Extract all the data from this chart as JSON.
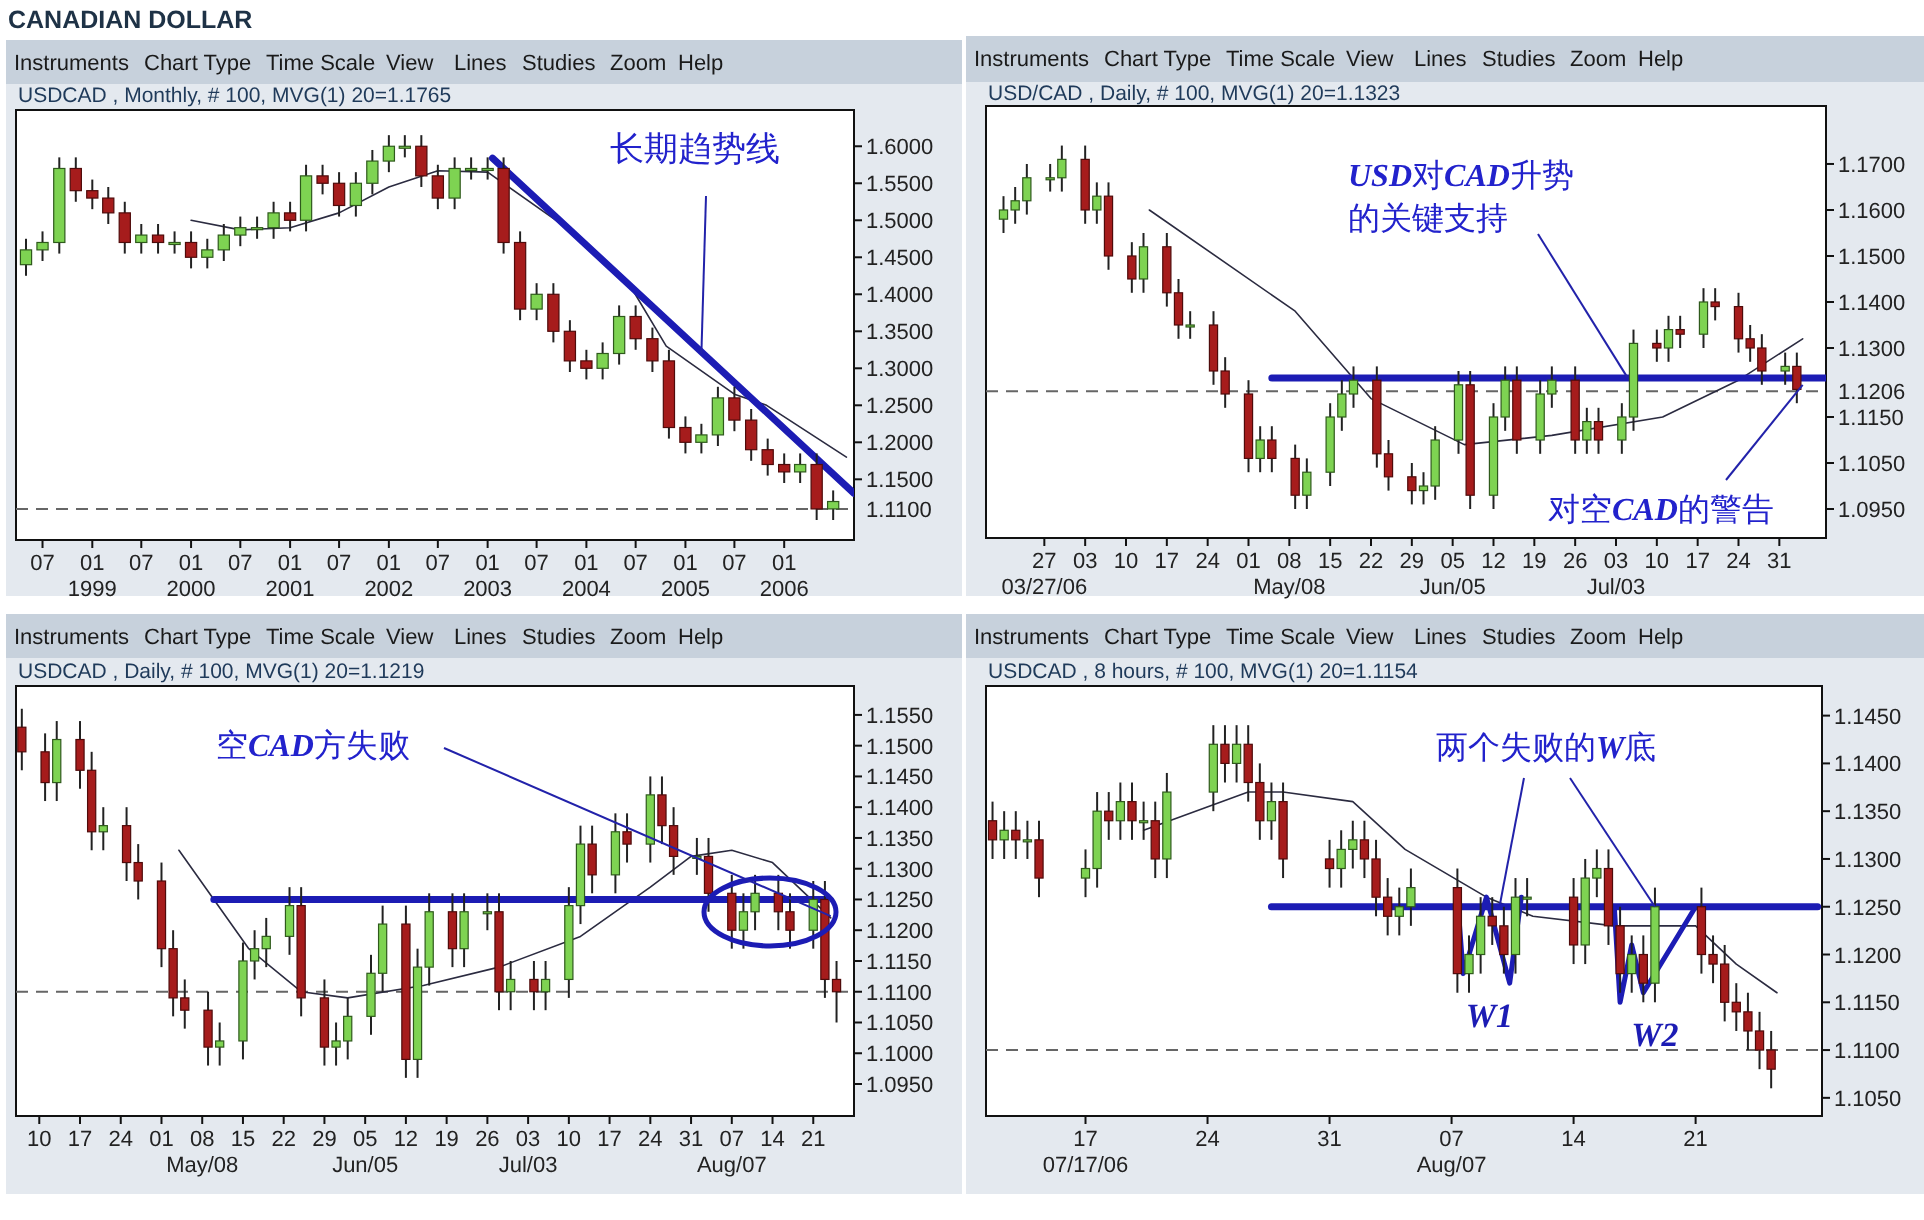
{
  "chart_data": [
    {
      "type": "candlestick",
      "title": "CANADIAN DOLLAR",
      "subtitle": "USDCAD , Monthly, # 100, MVG(1) 20=1.1765",
      "x": [
        "1998-05",
        "1998-07",
        "1998-09",
        "1998-11",
        "1999-01",
        "1999-03",
        "1999-05",
        "1999-07",
        "1999-09",
        "1999-11",
        "2000-01",
        "2000-03",
        "2000-05",
        "2000-07",
        "2000-09",
        "2000-11",
        "2001-01",
        "2001-03",
        "2001-05",
        "2001-07",
        "2001-09",
        "2001-11",
        "2002-01",
        "2002-03",
        "2002-05",
        "2002-07",
        "2002-09",
        "2002-11",
        "2003-01",
        "2003-03",
        "2003-05",
        "2003-07",
        "2003-09",
        "2003-11",
        "2004-01",
        "2004-03",
        "2004-05",
        "2004-07",
        "2004-09",
        "2004-11",
        "2005-01",
        "2005-03",
        "2005-05",
        "2005-07",
        "2005-09",
        "2005-11",
        "2006-01",
        "2006-03",
        "2006-05",
        "2006-07"
      ],
      "ohlc": [
        [
          1.44,
          1.475,
          1.425,
          1.46
        ],
        [
          1.46,
          1.485,
          1.445,
          1.47
        ],
        [
          1.47,
          1.585,
          1.455,
          1.57
        ],
        [
          1.57,
          1.585,
          1.525,
          1.54
        ],
        [
          1.54,
          1.555,
          1.515,
          1.53
        ],
        [
          1.53,
          1.545,
          1.495,
          1.51
        ],
        [
          1.51,
          1.525,
          1.455,
          1.47
        ],
        [
          1.47,
          1.495,
          1.455,
          1.48
        ],
        [
          1.48,
          1.495,
          1.455,
          1.47
        ],
        [
          1.47,
          1.485,
          1.455,
          1.47
        ],
        [
          1.47,
          1.485,
          1.435,
          1.45
        ],
        [
          1.45,
          1.475,
          1.435,
          1.46
        ],
        [
          1.46,
          1.495,
          1.445,
          1.48
        ],
        [
          1.48,
          1.505,
          1.465,
          1.49
        ],
        [
          1.49,
          1.505,
          1.475,
          1.49
        ],
        [
          1.49,
          1.525,
          1.475,
          1.51
        ],
        [
          1.51,
          1.525,
          1.485,
          1.5
        ],
        [
          1.5,
          1.575,
          1.485,
          1.56
        ],
        [
          1.56,
          1.575,
          1.535,
          1.55
        ],
        [
          1.55,
          1.565,
          1.505,
          1.52
        ],
        [
          1.52,
          1.565,
          1.505,
          1.55
        ],
        [
          1.55,
          1.595,
          1.535,
          1.58
        ],
        [
          1.58,
          1.615,
          1.565,
          1.6
        ],
        [
          1.6,
          1.615,
          1.585,
          1.6
        ],
        [
          1.6,
          1.615,
          1.545,
          1.56
        ],
        [
          1.56,
          1.575,
          1.515,
          1.53
        ],
        [
          1.53,
          1.585,
          1.515,
          1.57
        ],
        [
          1.57,
          1.585,
          1.555,
          1.57
        ],
        [
          1.57,
          1.585,
          1.555,
          1.57
        ],
        [
          1.57,
          1.585,
          1.455,
          1.47
        ],
        [
          1.47,
          1.485,
          1.365,
          1.38
        ],
        [
          1.38,
          1.415,
          1.365,
          1.4
        ],
        [
          1.4,
          1.415,
          1.335,
          1.35
        ],
        [
          1.35,
          1.365,
          1.295,
          1.31
        ],
        [
          1.31,
          1.325,
          1.285,
          1.3
        ],
        [
          1.3,
          1.335,
          1.285,
          1.32
        ],
        [
          1.32,
          1.385,
          1.305,
          1.37
        ],
        [
          1.37,
          1.385,
          1.325,
          1.34
        ],
        [
          1.34,
          1.355,
          1.295,
          1.31
        ],
        [
          1.31,
          1.325,
          1.205,
          1.22
        ],
        [
          1.22,
          1.235,
          1.185,
          1.2
        ],
        [
          1.2,
          1.225,
          1.185,
          1.21
        ],
        [
          1.21,
          1.275,
          1.195,
          1.26
        ],
        [
          1.26,
          1.275,
          1.215,
          1.23
        ],
        [
          1.23,
          1.245,
          1.175,
          1.19
        ],
        [
          1.19,
          1.205,
          1.155,
          1.17
        ],
        [
          1.17,
          1.185,
          1.145,
          1.16
        ],
        [
          1.16,
          1.185,
          1.145,
          1.17
        ],
        [
          1.17,
          1.185,
          1.095,
          1.11
        ],
        [
          1.11,
          1.135,
          1.095,
          1.12
        ]
      ],
      "series": [
        {
          "type": "line",
          "color": "#2b2b40",
          "x": [
            "2000-01",
            "2000-07",
            "2001-01",
            "2001-07",
            "2002-01",
            "2002-07",
            "2003-01",
            "2003-10-19",
            "2004-05-28",
            "2004-10-22",
            "2005-07",
            "2005-10-28",
            "2006-08-19"
          ],
          "values": [
            1.5,
            1.487,
            1.49,
            1.51,
            1.545,
            1.567,
            1.565,
            1.49,
            1.42,
            1.33,
            1.265,
            1.25,
            1.18
          ]
        },
        {
          "type": "line",
          "color": "#1c1cb4",
          "x": [
            "2003-01-19",
            "2006-09-16"
          ],
          "values": [
            1.584,
            1.131
          ]
        }
      ],
      "xlim": [
        "1998-03-25",
        "2006-09-16"
      ],
      "ylim": [
        1.068,
        1.649
      ],
      "xticks": [
        {
          "value": "1998-07",
          "label": "07"
        },
        {
          "value": "1999-01",
          "label": "01\n1999"
        },
        {
          "value": "1999-07",
          "label": "07"
        },
        {
          "value": "2000-01",
          "label": "01\n2000"
        },
        {
          "value": "2000-07",
          "label": "07"
        },
        {
          "value": "2001-01",
          "label": "01\n2001"
        },
        {
          "value": "2001-07",
          "label": "07"
        },
        {
          "value": "2002-01",
          "label": "01\n2002"
        },
        {
          "value": "2002-07",
          "label": "07"
        },
        {
          "value": "2003-01",
          "label": "01\n2003"
        },
        {
          "value": "2003-07",
          "label": "07"
        },
        {
          "value": "2004-01",
          "label": "01\n2004"
        },
        {
          "value": "2004-07",
          "label": "07"
        },
        {
          "value": "2005-01",
          "label": "01\n2005"
        },
        {
          "value": "2005-07",
          "label": "07"
        },
        {
          "value": "2006-01",
          "label": "01\n2006"
        }
      ],
      "yticks": [
        {
          "value": 1.6,
          "label": "1.6000"
        },
        {
          "value": 1.55,
          "label": "1.5500"
        },
        {
          "value": 1.5,
          "label": "1.5000"
        },
        {
          "value": 1.45,
          "label": "1.4500"
        },
        {
          "value": 1.4,
          "label": "1.4000"
        },
        {
          "value": 1.35,
          "label": "1.3500"
        },
        {
          "value": 1.3,
          "label": "1.3000"
        },
        {
          "value": 1.25,
          "label": "1.2500"
        },
        {
          "value": 1.2,
          "label": "1.2000"
        },
        {
          "value": 1.15,
          "label": "1.1500"
        }
      ],
      "ref_lines": [
        {
          "axis": "y",
          "value": 1.11,
          "label": "1.1100",
          "line_style": "dashed",
          "color": "#666666"
        }
      ],
      "annotations": [
        "Instruments",
        "Chart Type",
        "Time Scale",
        "View",
        "Lines",
        "Studies",
        "Zoom",
        "Help",
        {
          "text": "长期趋势线",
          "x": "2005-03",
          "y": 1.32
        }
      ]
    },
    {
      "type": "candlestick",
      "subtitle": "USD/CAD , Daily, # 100, MVG(1) 20=1.1323",
      "x": [
        "2006-03-20",
        "2006-03-22",
        "2006-03-24",
        "2006-03-28",
        "2006-03-30",
        "2006-04-03",
        "2006-04-05",
        "2006-04-07",
        "2006-04-11",
        "2006-04-13",
        "2006-04-17",
        "2006-04-19",
        "2006-04-21",
        "2006-04-25",
        "2006-04-27",
        "2006-05-01",
        "2006-05-03",
        "2006-05-05",
        "2006-05-09",
        "2006-05-11",
        "2006-05-15",
        "2006-05-17",
        "2006-05-19",
        "2006-05-23",
        "2006-05-25",
        "2006-05-29",
        "2006-05-31",
        "2006-06-02",
        "2006-06-06",
        "2006-06-08",
        "2006-06-12",
        "2006-06-14",
        "2006-06-16",
        "2006-06-20",
        "2006-06-22",
        "2006-06-26",
        "2006-06-28",
        "2006-06-30",
        "2006-07-04",
        "2006-07-06",
        "2006-07-10",
        "2006-07-12",
        "2006-07-14",
        "2006-07-18",
        "2006-07-20",
        "2006-07-24",
        "2006-07-26",
        "2006-07-28",
        "2006-08-01",
        "2006-08-03"
      ],
      "ohlc": [
        [
          1.158,
          1.163,
          1.155,
          1.16
        ],
        [
          1.16,
          1.165,
          1.157,
          1.162
        ],
        [
          1.162,
          1.17,
          1.159,
          1.167
        ],
        [
          1.167,
          1.17,
          1.164,
          1.167
        ],
        [
          1.167,
          1.174,
          1.164,
          1.171
        ],
        [
          1.171,
          1.174,
          1.157,
          1.16
        ],
        [
          1.16,
          1.166,
          1.157,
          1.163
        ],
        [
          1.163,
          1.166,
          1.147,
          1.15
        ],
        [
          1.15,
          1.153,
          1.142,
          1.145
        ],
        [
          1.145,
          1.155,
          1.142,
          1.152
        ],
        [
          1.152,
          1.155,
          1.139,
          1.142
        ],
        [
          1.142,
          1.145,
          1.132,
          1.135
        ],
        [
          1.135,
          1.138,
          1.132,
          1.135
        ],
        [
          1.135,
          1.138,
          1.122,
          1.125
        ],
        [
          1.125,
          1.128,
          1.117,
          1.12
        ],
        [
          1.12,
          1.123,
          1.103,
          1.106
        ],
        [
          1.106,
          1.113,
          1.103,
          1.11
        ],
        [
          1.11,
          1.113,
          1.103,
          1.106
        ],
        [
          1.106,
          1.109,
          1.095,
          1.098
        ],
        [
          1.098,
          1.106,
          1.095,
          1.103
        ],
        [
          1.103,
          1.118,
          1.1,
          1.115
        ],
        [
          1.115,
          1.123,
          1.112,
          1.12
        ],
        [
          1.12,
          1.126,
          1.117,
          1.123
        ],
        [
          1.123,
          1.126,
          1.104,
          1.107
        ],
        [
          1.107,
          1.11,
          1.099,
          1.102
        ],
        [
          1.102,
          1.105,
          1.096,
          1.099
        ],
        [
          1.099,
          1.103,
          1.096,
          1.1
        ],
        [
          1.1,
          1.113,
          1.097,
          1.11
        ],
        [
          1.11,
          1.125,
          1.107,
          1.122
        ],
        [
          1.122,
          1.125,
          1.095,
          1.098
        ],
        [
          1.098,
          1.118,
          1.095,
          1.115
        ],
        [
          1.115,
          1.126,
          1.112,
          1.123
        ],
        [
          1.123,
          1.126,
          1.107,
          1.11
        ],
        [
          1.11,
          1.123,
          1.107,
          1.12
        ],
        [
          1.12,
          1.126,
          1.117,
          1.123
        ],
        [
          1.123,
          1.126,
          1.107,
          1.11
        ],
        [
          1.11,
          1.117,
          1.107,
          1.114
        ],
        [
          1.114,
          1.117,
          1.107,
          1.11
        ],
        [
          1.11,
          1.118,
          1.107,
          1.115
        ],
        [
          1.115,
          1.134,
          1.112,
          1.131
        ],
        [
          1.131,
          1.134,
          1.127,
          1.13
        ],
        [
          1.13,
          1.137,
          1.127,
          1.134
        ],
        [
          1.134,
          1.137,
          1.13,
          1.133
        ],
        [
          1.133,
          1.143,
          1.13,
          1.14
        ],
        [
          1.14,
          1.143,
          1.136,
          1.139
        ],
        [
          1.139,
          1.142,
          1.129,
          1.132
        ],
        [
          1.132,
          1.135,
          1.127,
          1.13
        ],
        [
          1.13,
          1.133,
          1.122,
          1.125
        ],
        [
          1.125,
          1.129,
          1.122,
          1.126
        ],
        [
          1.126,
          1.129,
          1.118,
          1.121
        ]
      ],
      "series": [
        {
          "type": "line",
          "color": "#2b2b40",
          "x": [
            "2006-04-14",
            "2006-05-09",
            "2006-05-22",
            "2006-06-07",
            "2006-06-22",
            "2006-07-11",
            "2006-07-24",
            "2006-08-04"
          ],
          "values": [
            1.16,
            1.138,
            1.119,
            1.109,
            1.111,
            1.115,
            1.123,
            1.132
          ]
        },
        {
          "type": "line",
          "color": "#1c1cb4",
          "x": [
            "2006-05-05",
            "2006-08-08"
          ],
          "values": [
            1.1235,
            1.1235
          ]
        }
      ],
      "xlim": [
        "2006-03-17",
        "2006-08-08"
      ],
      "ylim": [
        1.0887,
        1.1826
      ],
      "xticks": [
        {
          "value": "2006-03-27",
          "label": "27\n03/27/06"
        },
        {
          "value": "2006-04-03",
          "label": "03"
        },
        {
          "value": "2006-04-10",
          "label": "10"
        },
        {
          "value": "2006-04-17",
          "label": "17"
        },
        {
          "value": "2006-04-24",
          "label": "24"
        },
        {
          "value": "2006-05-01",
          "label": "01"
        },
        {
          "value": "2006-05-08",
          "label": "08\nMay/08"
        },
        {
          "value": "2006-05-15",
          "label": "15"
        },
        {
          "value": "2006-05-22",
          "label": "22"
        },
        {
          "value": "2006-05-29",
          "label": "29"
        },
        {
          "value": "2006-06-05",
          "label": "05\nJun/05"
        },
        {
          "value": "2006-06-12",
          "label": "12"
        },
        {
          "value": "2006-06-19",
          "label": "19"
        },
        {
          "value": "2006-06-26",
          "label": "26"
        },
        {
          "value": "2006-07-03",
          "label": "03\nJul/03"
        },
        {
          "value": "2006-07-10",
          "label": "10"
        },
        {
          "value": "2006-07-17",
          "label": "17"
        },
        {
          "value": "2006-07-24",
          "label": "24"
        },
        {
          "value": "2006-07-31",
          "label": "31"
        }
      ],
      "yticks": [
        {
          "value": 1.17,
          "label": "1.1700"
        },
        {
          "value": 1.16,
          "label": "1.1600"
        },
        {
          "value": 1.15,
          "label": "1.1500"
        },
        {
          "value": 1.14,
          "label": "1.1400"
        },
        {
          "value": 1.13,
          "label": "1.1300"
        },
        {
          "value": 1.115,
          "label": "1.1150"
        },
        {
          "value": 1.105,
          "label": "1.1050"
        },
        {
          "value": 1.095,
          "label": "1.0950"
        }
      ],
      "ref_lines": [
        {
          "axis": "y",
          "value": 1.1206,
          "label": "1.1206",
          "line_style": "dashed",
          "color": "#666666"
        }
      ],
      "annotations": [
        "Instruments",
        "Chart Type",
        "Time Scale",
        "View",
        "Lines",
        "Studies",
        "Zoom",
        "Help",
        {
          "text": "**USD**对**CAD**升势的关键支持",
          "x": "2006-07-05",
          "y": 1.1235
        },
        {
          "text": "对空**CAD**的警告",
          "x": "2006-08-04",
          "y": 1.122
        }
      ]
    },
    {
      "type": "candlestick",
      "subtitle": "USDCAD , Daily, # 100, MVG(1) 20=1.1219",
      "x": [
        "2006-04-07",
        "2006-04-11",
        "2006-04-13",
        "2006-04-17",
        "2006-04-19",
        "2006-04-21",
        "2006-04-25",
        "2006-04-27",
        "2006-05-01",
        "2006-05-03",
        "2006-05-05",
        "2006-05-09",
        "2006-05-11",
        "2006-05-15",
        "2006-05-17",
        "2006-05-19",
        "2006-05-23",
        "2006-05-25",
        "2006-05-29",
        "2006-05-31",
        "2006-06-02",
        "2006-06-06",
        "2006-06-08",
        "2006-06-12",
        "2006-06-14",
        "2006-06-16",
        "2006-06-20",
        "2006-06-22",
        "2006-06-26",
        "2006-06-28",
        "2006-06-30",
        "2006-07-04",
        "2006-07-06",
        "2006-07-10",
        "2006-07-12",
        "2006-07-14",
        "2006-07-18",
        "2006-07-20",
        "2006-07-24",
        "2006-07-26",
        "2006-07-28",
        "2006-08-01",
        "2006-08-03",
        "2006-08-07",
        "2006-08-09",
        "2006-08-11",
        "2006-08-15",
        "2006-08-17",
        "2006-08-21",
        "2006-08-23",
        "2006-08-25"
      ],
      "ohlc": [
        [
          1.153,
          1.156,
          1.146,
          1.149
        ],
        [
          1.149,
          1.152,
          1.141,
          1.144
        ],
        [
          1.144,
          1.154,
          1.141,
          1.151
        ],
        [
          1.151,
          1.154,
          1.143,
          1.146
        ],
        [
          1.146,
          1.149,
          1.133,
          1.136
        ],
        [
          1.136,
          1.14,
          1.133,
          1.137
        ],
        [
          1.137,
          1.14,
          1.128,
          1.131
        ],
        [
          1.131,
          1.134,
          1.125,
          1.128
        ],
        [
          1.128,
          1.131,
          1.114,
          1.117
        ],
        [
          1.117,
          1.12,
          1.106,
          1.109
        ],
        [
          1.109,
          1.112,
          1.104,
          1.107
        ],
        [
          1.107,
          1.11,
          1.098,
          1.101
        ],
        [
          1.101,
          1.105,
          1.098,
          1.102
        ],
        [
          1.102,
          1.118,
          1.099,
          1.115
        ],
        [
          1.115,
          1.12,
          1.112,
          1.117
        ],
        [
          1.117,
          1.122,
          1.114,
          1.119
        ],
        [
          1.119,
          1.127,
          1.116,
          1.124
        ],
        [
          1.124,
          1.127,
          1.106,
          1.109
        ],
        [
          1.109,
          1.112,
          1.098,
          1.101
        ],
        [
          1.101,
          1.105,
          1.098,
          1.102
        ],
        [
          1.102,
          1.109,
          1.099,
          1.106
        ],
        [
          1.106,
          1.116,
          1.103,
          1.113
        ],
        [
          1.113,
          1.124,
          1.11,
          1.121
        ],
        [
          1.121,
          1.124,
          1.096,
          1.099
        ],
        [
          1.099,
          1.117,
          1.096,
          1.114
        ],
        [
          1.114,
          1.126,
          1.111,
          1.123
        ],
        [
          1.123,
          1.126,
          1.114,
          1.117
        ],
        [
          1.117,
          1.126,
          1.114,
          1.123
        ],
        [
          1.123,
          1.126,
          1.12,
          1.123
        ],
        [
          1.123,
          1.126,
          1.107,
          1.11
        ],
        [
          1.11,
          1.115,
          1.107,
          1.112
        ],
        [
          1.112,
          1.115,
          1.107,
          1.11
        ],
        [
          1.11,
          1.115,
          1.107,
          1.112
        ],
        [
          1.112,
          1.127,
          1.109,
          1.124
        ],
        [
          1.124,
          1.137,
          1.121,
          1.134
        ],
        [
          1.134,
          1.137,
          1.126,
          1.129
        ],
        [
          1.129,
          1.139,
          1.126,
          1.136
        ],
        [
          1.136,
          1.139,
          1.131,
          1.134
        ],
        [
          1.134,
          1.145,
          1.131,
          1.142
        ],
        [
          1.142,
          1.145,
          1.134,
          1.137
        ],
        [
          1.137,
          1.14,
          1.129,
          1.132
        ],
        [
          1.132,
          1.135,
          1.129,
          1.132
        ],
        [
          1.132,
          1.135,
          1.123,
          1.126
        ],
        [
          1.126,
          1.129,
          1.117,
          1.12
        ],
        [
          1.12,
          1.126,
          1.117,
          1.123
        ],
        [
          1.123,
          1.129,
          1.12,
          1.126
        ],
        [
          1.126,
          1.129,
          1.12,
          1.123
        ],
        [
          1.123,
          1.126,
          1.117,
          1.12
        ],
        [
          1.12,
          1.128,
          1.117,
          1.125
        ],
        [
          1.125,
          1.128,
          1.109,
          1.112
        ],
        [
          1.112,
          1.115,
          1.105,
          1.11
        ]
      ],
      "series": [
        {
          "type": "line",
          "color": "#2b2b40",
          "x": [
            "2006-05-04",
            "2006-05-16",
            "2006-05-25",
            "2006-06-02",
            "2006-06-15",
            "2006-06-28",
            "2006-07-12",
            "2006-07-24",
            "2006-07-31",
            "2006-08-07",
            "2006-08-14",
            "2006-08-24"
          ],
          "values": [
            1.133,
            1.117,
            1.11,
            1.109,
            1.111,
            1.114,
            1.119,
            1.127,
            1.132,
            1.133,
            1.131,
            1.122
          ]
        },
        {
          "type": "line",
          "color": "#1c1cb4",
          "x": [
            "2006-05-10",
            "2006-08-23"
          ],
          "values": [
            1.125,
            1.125
          ]
        }
      ],
      "xlim": [
        "2006-04-06",
        "2006-08-28"
      ],
      "ylim": [
        1.0898,
        1.1597
      ],
      "xticks": [
        {
          "value": "2006-04-10",
          "label": "10"
        },
        {
          "value": "2006-04-17",
          "label": "17"
        },
        {
          "value": "2006-04-24",
          "label": "24"
        },
        {
          "value": "2006-05-01",
          "label": "01"
        },
        {
          "value": "2006-05-08",
          "label": "08\nMay/08"
        },
        {
          "value": "2006-05-15",
          "label": "15"
        },
        {
          "value": "2006-05-22",
          "label": "22"
        },
        {
          "value": "2006-05-29",
          "label": "29"
        },
        {
          "value": "2006-06-05",
          "label": "05\nJun/05"
        },
        {
          "value": "2006-06-12",
          "label": "12"
        },
        {
          "value": "2006-06-19",
          "label": "19"
        },
        {
          "value": "2006-06-26",
          "label": "26"
        },
        {
          "value": "2006-07-03",
          "label": "03\nJul/03"
        },
        {
          "value": "2006-07-10",
          "label": "10"
        },
        {
          "value": "2006-07-17",
          "label": "17"
        },
        {
          "value": "2006-07-24",
          "label": "24"
        },
        {
          "value": "2006-07-31",
          "label": "31"
        },
        {
          "value": "2006-08-07",
          "label": "07\nAug/07"
        },
        {
          "value": "2006-08-14",
          "label": "14"
        },
        {
          "value": "2006-08-21",
          "label": "21"
        }
      ],
      "yticks": [
        {
          "value": 1.155,
          "label": "1.1550"
        },
        {
          "value": 1.15,
          "label": "1.1500"
        },
        {
          "value": 1.145,
          "label": "1.1450"
        },
        {
          "value": 1.14,
          "label": "1.1400"
        },
        {
          "value": 1.135,
          "label": "1.1350"
        },
        {
          "value": 1.13,
          "label": "1.1300"
        },
        {
          "value": 1.125,
          "label": "1.1250"
        },
        {
          "value": 1.12,
          "label": "1.1200"
        },
        {
          "value": 1.115,
          "label": "1.1150"
        },
        {
          "value": 1.11,
          "label": "1.1100"
        },
        {
          "value": 1.105,
          "label": "1.1050"
        },
        {
          "value": 1.1,
          "label": "1.1000"
        },
        {
          "value": 1.095,
          "label": "1.0950"
        }
      ],
      "ref_lines": [
        {
          "axis": "y",
          "value": 1.11,
          "line_style": "dashed",
          "color": "#666666"
        }
      ],
      "annotations": [
        "Instruments",
        "Chart Type",
        "Time Scale",
        "View",
        "Lines",
        "Studies",
        "Zoom",
        "Help",
        {
          "text": "空**CAD**方失败",
          "x": "2006-08-24",
          "y": 1.1223
        }
      ]
    },
    {
      "type": "candlestick",
      "subtitle": "USDCAD , 8 hours, # 100, MVG(1) 20=1.1154",
      "x": [
        "2006-07-11T16:00",
        "2006-07-12T08:00",
        "2006-07-13T00:00",
        "2006-07-13T16:00",
        "2006-07-14T08:00",
        "2006-07-17T00:00",
        "2006-07-17T16:00",
        "2006-07-18T08:00",
        "2006-07-19T00:00",
        "2006-07-19T16:00",
        "2006-07-20T08:00",
        "2006-07-21T00:00",
        "2006-07-21T16:00",
        "2006-07-24T08:00",
        "2006-07-25T00:00",
        "2006-07-25T16:00",
        "2006-07-26T08:00",
        "2006-07-27T00:00",
        "2006-07-27T16:00",
        "2006-07-28T08:00",
        "2006-07-31T00:00",
        "2006-07-31T16:00",
        "2006-08-01T08:00",
        "2006-08-02T00:00",
        "2006-08-02T16:00",
        "2006-08-03T08:00",
        "2006-08-04T00:00",
        "2006-08-04T16:00",
        "2006-08-07T08:00",
        "2006-08-08T00:00",
        "2006-08-08T16:00",
        "2006-08-09T08:00",
        "2006-08-10T00:00",
        "2006-08-10T16:00",
        "2006-08-11T08:00",
        "2006-08-14T00:00",
        "2006-08-14T16:00",
        "2006-08-15T08:00",
        "2006-08-16T00:00",
        "2006-08-16T16:00",
        "2006-08-17T08:00",
        "2006-08-18T00:00",
        "2006-08-18T16:00",
        "2006-08-21T08:00",
        "2006-08-22T00:00",
        "2006-08-22T16:00",
        "2006-08-23T08:00",
        "2006-08-24T00:00",
        "2006-08-24T16:00",
        "2006-08-25T08:00"
      ],
      "ohlc": [
        [
          1.134,
          1.136,
          1.13,
          1.132
        ],
        [
          1.132,
          1.135,
          1.13,
          1.133
        ],
        [
          1.133,
          1.135,
          1.13,
          1.132
        ],
        [
          1.132,
          1.134,
          1.13,
          1.132
        ],
        [
          1.132,
          1.134,
          1.126,
          1.128
        ],
        [
          1.128,
          1.131,
          1.126,
          1.129
        ],
        [
          1.129,
          1.137,
          1.127,
          1.135
        ],
        [
          1.135,
          1.137,
          1.132,
          1.134
        ],
        [
          1.134,
          1.138,
          1.132,
          1.136
        ],
        [
          1.136,
          1.138,
          1.132,
          1.134
        ],
        [
          1.134,
          1.136,
          1.132,
          1.134
        ],
        [
          1.134,
          1.136,
          1.128,
          1.13
        ],
        [
          1.13,
          1.139,
          1.128,
          1.137
        ],
        [
          1.137,
          1.144,
          1.135,
          1.142
        ],
        [
          1.142,
          1.144,
          1.138,
          1.14
        ],
        [
          1.14,
          1.144,
          1.138,
          1.142
        ],
        [
          1.142,
          1.144,
          1.136,
          1.138
        ],
        [
          1.138,
          1.14,
          1.132,
          1.134
        ],
        [
          1.134,
          1.138,
          1.132,
          1.136
        ],
        [
          1.136,
          1.138,
          1.128,
          1.13
        ],
        [
          1.13,
          1.132,
          1.127,
          1.129
        ],
        [
          1.129,
          1.133,
          1.127,
          1.131
        ],
        [
          1.131,
          1.134,
          1.129,
          1.132
        ],
        [
          1.132,
          1.134,
          1.128,
          1.13
        ],
        [
          1.13,
          1.132,
          1.124,
          1.126
        ],
        [
          1.126,
          1.128,
          1.122,
          1.124
        ],
        [
          1.124,
          1.127,
          1.122,
          1.125
        ],
        [
          1.125,
          1.129,
          1.123,
          1.127
        ],
        [
          1.127,
          1.129,
          1.116,
          1.118
        ],
        [
          1.118,
          1.122,
          1.116,
          1.12
        ],
        [
          1.12,
          1.126,
          1.118,
          1.124
        ],
        [
          1.124,
          1.126,
          1.121,
          1.123
        ],
        [
          1.123,
          1.125,
          1.118,
          1.12
        ],
        [
          1.12,
          1.128,
          1.118,
          1.126
        ],
        [
          1.126,
          1.128,
          1.124,
          1.126
        ],
        [
          1.126,
          1.128,
          1.119,
          1.121
        ],
        [
          1.121,
          1.13,
          1.119,
          1.128
        ],
        [
          1.128,
          1.131,
          1.126,
          1.129
        ],
        [
          1.129,
          1.131,
          1.121,
          1.123
        ],
        [
          1.123,
          1.125,
          1.116,
          1.118
        ],
        [
          1.118,
          1.122,
          1.116,
          1.12
        ],
        [
          1.12,
          1.122,
          1.115,
          1.117
        ],
        [
          1.117,
          1.127,
          1.115,
          1.125
        ],
        [
          1.125,
          1.127,
          1.118,
          1.12
        ],
        [
          1.12,
          1.122,
          1.117,
          1.119
        ],
        [
          1.119,
          1.121,
          1.113,
          1.115
        ],
        [
          1.115,
          1.117,
          1.112,
          1.114
        ],
        [
          1.114,
          1.116,
          1.11,
          1.112
        ],
        [
          1.112,
          1.114,
          1.108,
          1.11
        ],
        [
          1.11,
          1.112,
          1.106,
          1.108
        ]
      ],
      "series": [
        {
          "type": "line",
          "color": "#2b2b40",
          "x": [
            "2006-07-20T08:00",
            "2006-07-26T08:00",
            "2006-07-28T08:00",
            "2006-08-01T08:00",
            "2006-08-04T08:00",
            "2006-08-09T00:00",
            "2006-08-11T16:00",
            "2006-08-16T08:00",
            "2006-08-21T00:00",
            "2006-08-23T08:00",
            "2006-08-25T16:00"
          ],
          "values": [
            1.133,
            1.137,
            1.137,
            1.136,
            1.131,
            1.126,
            1.124,
            1.123,
            1.123,
            1.119,
            1.116
          ]
        },
        {
          "type": "line",
          "color": "#1c1cb4",
          "x": [
            "2006-07-27T16:00",
            "2006-08-28T00:00"
          ],
          "values": [
            1.125,
            1.125
          ]
        },
        {
          "type": "line",
          "name": "W1",
          "color": "#1c1cb4",
          "x": [
            "2006-08-07T08:00",
            "2006-08-07T16:00",
            "2006-08-09T00:00",
            "2006-08-10T08:00",
            "2006-08-11T00:00"
          ],
          "values": [
            1.126,
            1.118,
            1.126,
            1.117,
            1.126
          ]
        },
        {
          "type": "line",
          "name": "W2",
          "color": "#1c1cb4",
          "x": [
            "2006-08-16T08:00",
            "2006-08-16T16:00",
            "2006-08-17T08:00",
            "2006-08-18T00:00",
            "2006-08-21T00:00"
          ],
          "values": [
            1.125,
            1.115,
            1.121,
            1.116,
            1.125
          ]
        }
      ],
      "xlim": [
        "2006-07-11T07:00",
        "2006-08-28T06:00"
      ],
      "ylim": [
        1.1031,
        1.1481
      ],
      "xticks": [
        {
          "value": "2006-07-17",
          "label": "17\n07/17/06"
        },
        {
          "value": "2006-07-24",
          "label": "24"
        },
        {
          "value": "2006-07-31",
          "label": "31"
        },
        {
          "value": "2006-08-07",
          "label": "07\nAug/07"
        },
        {
          "value": "2006-08-14",
          "label": "14"
        },
        {
          "value": "2006-08-21",
          "label": "21"
        }
      ],
      "yticks": [
        {
          "value": 1.145,
          "label": "1.1450"
        },
        {
          "value": 1.14,
          "label": "1.1400"
        },
        {
          "value": 1.135,
          "label": "1.1350"
        },
        {
          "value": 1.13,
          "label": "1.1300"
        },
        {
          "value": 1.125,
          "label": "1.1250"
        },
        {
          "value": 1.12,
          "label": "1.1200"
        },
        {
          "value": 1.115,
          "label": "1.1150"
        },
        {
          "value": 1.11,
          "label": "1.1100"
        },
        {
          "value": 1.105,
          "label": "1.1050"
        }
      ],
      "ref_lines": [
        {
          "axis": "y",
          "value": 1.11,
          "line_style": "dashed",
          "color": "#666666"
        }
      ],
      "annotations": [
        "Instruments",
        "Chart Type",
        "Time Scale",
        "View",
        "Lines",
        "Studies",
        "Zoom",
        "Help",
        {
          "text": "两个失败的**W**底",
          "x": "2006-08-18T16:00",
          "y": 1.125
        }
      ]
    }
  ]
}
